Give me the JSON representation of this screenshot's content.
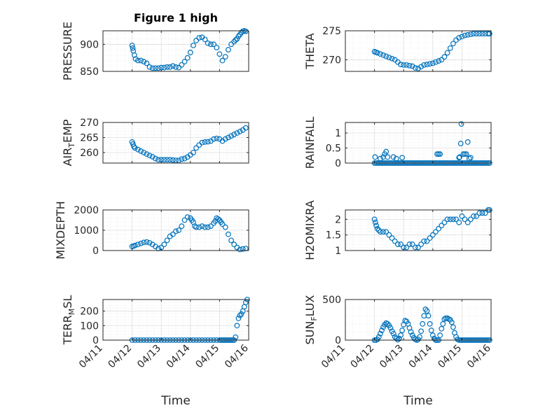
{
  "figure_title": "Figure 1 high",
  "chart_data": [
    {
      "type": "scatter",
      "name": "pressure",
      "title": "Figure 1 high",
      "ylabel": "PRESSURE",
      "ylabel_sub": "",
      "ylabel_tail": "",
      "xlabel": "",
      "xlim": [
        "04/11",
        "04/16"
      ],
      "ylim": [
        850,
        925
      ],
      "yticks": [
        "850",
        "900"
      ],
      "ytick_values": [
        850,
        900
      ],
      "xticks": [],
      "grid": "on",
      "marker_color": "#0072BD",
      "x": [
        1.0,
        1.02,
        1.04,
        1.08,
        1.12,
        1.2,
        1.3,
        1.4,
        1.5,
        1.6,
        1.7,
        1.8,
        1.9,
        2.0,
        2.1,
        2.2,
        2.3,
        2.4,
        2.5,
        2.6,
        2.7,
        2.8,
        2.9,
        3.0,
        3.1,
        3.2,
        3.3,
        3.4,
        3.5,
        3.6,
        3.7,
        3.8,
        3.9,
        4.0,
        4.1,
        4.2,
        4.3,
        4.4,
        4.5,
        4.55,
        4.6,
        4.65,
        4.7,
        4.75,
        4.8,
        4.85,
        4.9
      ],
      "y": [
        898,
        893,
        888,
        880,
        873,
        870,
        870,
        868,
        865,
        858,
        856,
        856,
        856,
        857,
        857,
        858,
        858,
        860,
        858,
        857,
        862,
        868,
        875,
        885,
        898,
        907,
        912,
        913,
        909,
        902,
        900,
        900,
        894,
        882,
        870,
        877,
        890,
        900,
        905,
        908,
        910,
        915,
        918,
        922,
        924,
        925,
        924
      ]
    },
    {
      "type": "scatter",
      "name": "theta",
      "title": "",
      "ylabel": "THETA",
      "ylabel_sub": "",
      "ylabel_tail": "",
      "xlabel": "",
      "xlim": [
        "04/11",
        "04/16"
      ],
      "ylim": [
        268,
        275
      ],
      "yticks": [
        "270",
        "275"
      ],
      "ytick_values": [
        270,
        275
      ],
      "xticks": [],
      "grid": "on",
      "marker_color": "#0072BD",
      "x": [
        1.0,
        1.05,
        1.1,
        1.2,
        1.3,
        1.4,
        1.5,
        1.6,
        1.7,
        1.8,
        1.9,
        2.0,
        2.1,
        2.2,
        2.3,
        2.4,
        2.5,
        2.6,
        2.7,
        2.8,
        2.9,
        3.0,
        3.1,
        3.2,
        3.3,
        3.4,
        3.5,
        3.6,
        3.7,
        3.8,
        3.9,
        4.0,
        4.1,
        4.2,
        4.3,
        4.4,
        4.5,
        4.6,
        4.7,
        4.8,
        4.9,
        4.95
      ],
      "y": [
        271.4,
        271.3,
        271.2,
        271.0,
        270.8,
        270.6,
        270.4,
        270.2,
        270.0,
        269.6,
        269.2,
        269.1,
        269.1,
        269.0,
        268.9,
        268.6,
        268.5,
        268.8,
        269.1,
        269.2,
        269.3,
        269.4,
        269.6,
        269.8,
        270.0,
        270.5,
        271.2,
        272.0,
        272.8,
        273.4,
        273.8,
        274.0,
        274.2,
        274.3,
        274.4,
        274.5,
        274.5,
        274.5,
        274.5,
        274.5,
        274.5,
        274.5
      ]
    },
    {
      "type": "scatter",
      "name": "air_temp",
      "title": "",
      "ylabel": "AIR",
      "ylabel_sub": "T",
      "ylabel_tail": "EMP",
      "xlabel": "",
      "xlim": [
        "04/11",
        "04/16"
      ],
      "ylim": [
        256.5,
        270
      ],
      "yticks": [
        "260",
        "265",
        "270"
      ],
      "ytick_values": [
        260,
        265,
        270
      ],
      "xticks": [],
      "grid": "on",
      "marker_color": "#0072BD",
      "x": [
        1.0,
        1.03,
        1.06,
        1.1,
        1.2,
        1.3,
        1.4,
        1.5,
        1.6,
        1.7,
        1.8,
        1.9,
        2.0,
        2.1,
        2.2,
        2.3,
        2.4,
        2.5,
        2.6,
        2.7,
        2.8,
        2.9,
        3.0,
        3.1,
        3.2,
        3.3,
        3.4,
        3.5,
        3.6,
        3.7,
        3.8,
        3.9,
        4.0,
        4.1,
        4.2,
        4.3,
        4.4,
        4.5,
        4.6,
        4.7,
        4.8,
        4.9
      ],
      "y": [
        263.5,
        262.8,
        262.0,
        261.5,
        261.0,
        260.5,
        260.0,
        259.5,
        259.0,
        258.6,
        258.0,
        257.6,
        257.6,
        257.6,
        257.6,
        257.6,
        257.5,
        257.4,
        257.4,
        257.8,
        258.0,
        258.5,
        259.2,
        260.0,
        261.5,
        262.5,
        263.3,
        263.5,
        263.6,
        263.8,
        264.5,
        264.7,
        264.5,
        263.8,
        264.5,
        265.0,
        265.5,
        266.0,
        266.5,
        267.0,
        267.5,
        268.2
      ]
    },
    {
      "type": "scatter",
      "name": "rainfall",
      "title": "",
      "ylabel": "RAINFALL",
      "ylabel_sub": "",
      "ylabel_tail": "",
      "xlabel": "",
      "xlim": [
        "04/11",
        "04/16"
      ],
      "ylim": [
        0,
        1.35
      ],
      "yticks": [
        "0",
        "0.5",
        "1"
      ],
      "ytick_values": [
        0,
        0.5,
        1
      ],
      "xticks": [],
      "grid": "on",
      "marker_color": "#0072BD",
      "x": [
        1.0,
        1.05,
        1.1,
        1.15,
        1.2,
        1.25,
        1.3,
        1.35,
        1.4,
        1.45,
        1.5,
        1.55,
        1.6,
        1.65,
        1.7,
        1.75,
        1.8,
        1.85,
        1.9,
        1.95,
        2.0,
        2.05,
        2.1,
        2.15,
        2.2,
        2.25,
        2.3,
        2.35,
        2.4,
        2.45,
        2.5,
        2.55,
        2.6,
        2.65,
        2.7,
        2.75,
        2.8,
        2.85,
        2.9,
        2.95,
        3.0,
        3.05,
        3.1,
        3.15,
        3.2,
        3.25,
        3.3,
        3.35,
        3.4,
        3.45,
        3.5,
        3.55,
        3.6,
        3.65,
        3.7,
        3.75,
        3.8,
        3.85,
        3.9,
        3.95,
        4.0,
        4.05,
        4.1,
        4.15,
        4.2,
        4.25,
        4.3,
        4.35,
        4.4,
        4.45,
        4.5,
        4.55,
        4.6,
        4.65,
        4.7,
        4.75,
        4.8,
        4.85,
        4.9,
        4.95,
        1.02,
        1.2,
        1.3,
        1.35,
        1.4,
        1.45,
        1.65,
        1.75,
        1.95,
        3.15,
        3.2,
        3.25,
        3.9,
        3.92,
        3.96,
        3.98,
        4.05,
        4.1,
        4.15,
        4.2,
        4.25,
        4.3
      ],
      "y": [
        0,
        0,
        0,
        0,
        0,
        0,
        0,
        0,
        0,
        0,
        0,
        0,
        0,
        0,
        0,
        0,
        0,
        0,
        0,
        0,
        0,
        0,
        0,
        0,
        0,
        0,
        0,
        0,
        0,
        0,
        0,
        0,
        0,
        0,
        0,
        0,
        0,
        0,
        0,
        0,
        0,
        0,
        0,
        0,
        0,
        0,
        0,
        0,
        0,
        0,
        0,
        0,
        0,
        0,
        0,
        0,
        0,
        0,
        0,
        0,
        0,
        0,
        0,
        0,
        0,
        0,
        0,
        0,
        0,
        0,
        0,
        0,
        0,
        0,
        0,
        0,
        0,
        0,
        0,
        0,
        0.2,
        0.15,
        0.2,
        0.3,
        0.38,
        0.2,
        0.2,
        0.15,
        0.18,
        0.3,
        0.3,
        0.3,
        0.18,
        0.2,
        0.65,
        1.3,
        0.3,
        0.3,
        0.3,
        0.7,
        0.15,
        0.18
      ]
    },
    {
      "type": "scatter",
      "name": "mixdepth",
      "title": "",
      "ylabel": "MIXDEPTH",
      "ylabel_sub": "",
      "ylabel_tail": "",
      "xlabel": "",
      "xlim": [
        "04/11",
        "04/16"
      ],
      "ylim": [
        0,
        2000
      ],
      "yticks": [
        "0",
        "1000",
        "2000"
      ],
      "ytick_values": [
        0,
        1000,
        2000
      ],
      "xticks": [],
      "grid": "on",
      "marker_color": "#0072BD",
      "x": [
        1.0,
        1.05,
        1.1,
        1.2,
        1.3,
        1.4,
        1.5,
        1.6,
        1.7,
        1.8,
        1.9,
        2.0,
        2.1,
        2.2,
        2.3,
        2.4,
        2.5,
        2.6,
        2.7,
        2.8,
        2.9,
        3.0,
        3.05,
        3.1,
        3.15,
        3.2,
        3.3,
        3.4,
        3.5,
        3.6,
        3.7,
        3.8,
        3.85,
        3.9,
        3.95,
        4.0,
        4.05,
        4.1,
        4.2,
        4.3,
        4.4,
        4.5,
        4.6,
        4.7,
        4.8,
        4.9
      ],
      "y": [
        200,
        220,
        250,
        300,
        350,
        400,
        420,
        380,
        300,
        200,
        100,
        150,
        300,
        500,
        700,
        800,
        950,
        1000,
        1200,
        1500,
        1650,
        1600,
        1500,
        1400,
        1200,
        1150,
        1150,
        1200,
        1150,
        1150,
        1200,
        1350,
        1450,
        1600,
        1550,
        1500,
        1400,
        1300,
        1150,
        800,
        500,
        300,
        150,
        50,
        80,
        100
      ]
    },
    {
      "type": "scatter",
      "name": "h2omixra",
      "title": "",
      "ylabel": "H2OMIXRA",
      "ylabel_sub": "",
      "ylabel_tail": "",
      "xlabel": "",
      "xlim": [
        "04/11",
        "04/16"
      ],
      "ylim": [
        1,
        2.3
      ],
      "yticks": [
        "1",
        "1.5",
        "2"
      ],
      "ytick_values": [
        1,
        1.5,
        2
      ],
      "xticks": [],
      "grid": "on",
      "marker_color": "#0072BD",
      "x": [
        1.0,
        1.03,
        1.06,
        1.1,
        1.15,
        1.2,
        1.3,
        1.4,
        1.5,
        1.6,
        1.7,
        1.8,
        1.9,
        2.0,
        2.1,
        2.2,
        2.3,
        2.4,
        2.5,
        2.6,
        2.7,
        2.8,
        2.9,
        3.0,
        3.1,
        3.2,
        3.3,
        3.4,
        3.5,
        3.6,
        3.7,
        3.8,
        3.9,
        4.0,
        4.1,
        4.2,
        4.3,
        4.4,
        4.5,
        4.6,
        4.7,
        4.8,
        4.9,
        4.95
      ],
      "y": [
        2.0,
        1.9,
        1.8,
        1.7,
        1.65,
        1.6,
        1.6,
        1.6,
        1.5,
        1.4,
        1.3,
        1.2,
        1.2,
        1.1,
        1.1,
        1.2,
        1.2,
        1.1,
        1.1,
        1.2,
        1.3,
        1.3,
        1.4,
        1.5,
        1.6,
        1.7,
        1.8,
        1.9,
        2.0,
        2.0,
        2.0,
        2.0,
        1.9,
        2.1,
        2.0,
        1.9,
        2.0,
        2.1,
        2.1,
        2.2,
        2.2,
        2.2,
        2.3,
        2.3
      ]
    },
    {
      "type": "scatter",
      "name": "terr_msl",
      "title": "",
      "ylabel": "TERR",
      "ylabel_sub": "M",
      "ylabel_tail": "SL",
      "xlabel": "Time",
      "xlim": [
        "04/11",
        "04/16"
      ],
      "ylim": [
        0,
        280
      ],
      "yticks": [
        "0",
        "100",
        "200"
      ],
      "ytick_values": [
        0,
        100,
        200
      ],
      "xticks": [
        "04/11",
        "04/12",
        "04/13",
        "04/14",
        "04/15",
        "04/16"
      ],
      "grid": "on",
      "marker_color": "#0072BD",
      "x": [
        1.0,
        1.1,
        1.2,
        1.3,
        1.4,
        1.5,
        1.6,
        1.7,
        1.8,
        1.9,
        2.0,
        2.1,
        2.2,
        2.3,
        2.4,
        2.5,
        2.6,
        2.7,
        2.8,
        2.9,
        3.0,
        3.1,
        3.2,
        3.3,
        3.4,
        3.5,
        3.6,
        3.7,
        3.8,
        3.9,
        4.0,
        4.05,
        4.1,
        4.15,
        4.2,
        4.25,
        4.3,
        4.35,
        4.4,
        4.45,
        4.5,
        4.55,
        4.6,
        4.65,
        4.7,
        4.75,
        4.8,
        4.85,
        4.9,
        4.95
      ],
      "y": [
        0,
        0,
        0,
        0,
        0,
        0,
        0,
        0,
        0,
        0,
        0,
        0,
        0,
        0,
        0,
        0,
        0,
        0,
        0,
        0,
        0,
        0,
        0,
        0,
        0,
        0,
        0,
        0,
        0,
        0,
        0,
        0,
        0,
        0,
        0,
        0,
        0,
        0,
        0,
        0,
        0,
        20,
        100,
        150,
        170,
        180,
        200,
        230,
        260,
        280
      ]
    },
    {
      "type": "scatter",
      "name": "sun_flux",
      "title": "",
      "ylabel": "SUN",
      "ylabel_sub": "F",
      "ylabel_tail": "LUX",
      "xlabel": "Time",
      "xlim": [
        "04/11",
        "04/16"
      ],
      "ylim": [
        0,
        500
      ],
      "yticks": [
        "0",
        "500"
      ],
      "ytick_values": [
        0,
        500
      ],
      "xticks": [
        "04/11",
        "04/12",
        "04/13",
        "04/14",
        "04/15",
        "04/16"
      ],
      "grid": "on",
      "marker_color": "#0072BD",
      "x": [
        1.0,
        1.05,
        1.1,
        1.15,
        1.2,
        1.25,
        1.3,
        1.35,
        1.4,
        1.45,
        1.5,
        1.55,
        1.6,
        1.65,
        1.7,
        1.75,
        1.8,
        1.85,
        1.9,
        1.95,
        2.0,
        2.05,
        2.1,
        2.15,
        2.2,
        2.25,
        2.3,
        2.35,
        2.4,
        2.45,
        2.5,
        2.55,
        2.6,
        2.65,
        2.7,
        2.75,
        2.8,
        2.85,
        2.9,
        2.95,
        3.0,
        3.05,
        3.1,
        3.15,
        3.2,
        3.25,
        3.3,
        3.35,
        3.4,
        3.45,
        3.5,
        3.55,
        3.6,
        3.65,
        3.7,
        3.75,
        3.8,
        3.85,
        3.9,
        3.95,
        4.0,
        4.05,
        4.1,
        4.15,
        4.2,
        4.25,
        4.3,
        4.35,
        4.4,
        4.45,
        4.5,
        4.55,
        4.6,
        4.65,
        4.7,
        4.75,
        4.8,
        4.85,
        4.9,
        4.95
      ],
      "y": [
        0,
        0,
        10,
        40,
        80,
        120,
        160,
        190,
        210,
        200,
        180,
        150,
        110,
        80,
        40,
        20,
        5,
        20,
        60,
        120,
        190,
        240,
        230,
        200,
        150,
        100,
        60,
        30,
        10,
        0,
        10,
        40,
        110,
        200,
        300,
        380,
        360,
        300,
        200,
        120,
        60,
        20,
        0,
        0,
        0,
        60,
        140,
        200,
        260,
        270,
        270,
        260,
        250,
        220,
        160,
        90,
        40,
        10,
        0,
        0,
        0,
        0,
        0,
        0,
        0,
        0,
        0,
        0,
        0,
        0,
        0,
        0,
        0,
        0,
        0,
        0,
        0,
        0,
        0,
        0
      ]
    }
  ]
}
